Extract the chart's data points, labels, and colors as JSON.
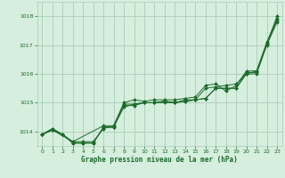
{
  "background_color": "#d6eedd",
  "grid_color": "#aaccbb",
  "line_color": "#1a6b2a",
  "text_color": "#1a6b2a",
  "xlabel": "Graphe pression niveau de la mer (hPa)",
  "xlim": [
    -0.5,
    23.5
  ],
  "ylim": [
    1013.5,
    1018.5
  ],
  "yticks": [
    1014,
    1015,
    1016,
    1017,
    1018
  ],
  "xticks": [
    0,
    1,
    2,
    3,
    4,
    5,
    6,
    7,
    8,
    9,
    10,
    11,
    12,
    13,
    14,
    15,
    16,
    17,
    18,
    19,
    20,
    21,
    22,
    23
  ],
  "series": [
    {
      "x": [
        0,
        1,
        2,
        3,
        4,
        5,
        6,
        7,
        8,
        9,
        10,
        11,
        12,
        13,
        14,
        15,
        16,
        17,
        18,
        19,
        20,
        21,
        22,
        23
      ],
      "y": [
        1013.9,
        1014.1,
        1013.9,
        1013.65,
        1013.65,
        1013.65,
        1014.1,
        1014.2,
        1014.9,
        1014.9,
        1015.0,
        1015.0,
        1015.0,
        1015.0,
        1015.05,
        1015.1,
        1015.15,
        1015.5,
        1015.5,
        1015.5,
        1016.0,
        1016.0,
        1017.0,
        1017.8
      ]
    },
    {
      "x": [
        0,
        1,
        2,
        3,
        4,
        5,
        6,
        7,
        8,
        9,
        10,
        11,
        12,
        13,
        14,
        15,
        16,
        17,
        18,
        19,
        20,
        21,
        22,
        23
      ],
      "y": [
        1013.9,
        1014.1,
        1013.9,
        1013.6,
        1013.6,
        1013.6,
        1014.15,
        1014.15,
        1014.85,
        1014.95,
        1015.0,
        1015.0,
        1015.05,
        1015.0,
        1015.1,
        1015.1,
        1015.5,
        1015.55,
        1015.6,
        1015.65,
        1016.0,
        1016.1,
        1017.05,
        1018.0
      ]
    },
    {
      "x": [
        0,
        1,
        3,
        6,
        7,
        8,
        9,
        10,
        11,
        12,
        13,
        14,
        15,
        16,
        17,
        18,
        19,
        20,
        21,
        22,
        23
      ],
      "y": [
        1013.9,
        1014.05,
        1013.65,
        1014.2,
        1014.2,
        1015.0,
        1015.1,
        1015.05,
        1015.1,
        1015.1,
        1015.1,
        1015.15,
        1015.2,
        1015.6,
        1015.65,
        1015.4,
        1015.6,
        1016.1,
        1016.1,
        1017.1,
        1017.9
      ]
    },
    {
      "x": [
        0,
        1,
        2,
        3,
        4,
        5,
        6,
        7,
        8,
        9,
        10,
        11,
        12,
        13,
        14,
        15,
        16,
        17,
        18,
        19,
        20,
        21,
        22,
        23
      ],
      "y": [
        1013.9,
        1014.05,
        1013.9,
        1013.6,
        1013.6,
        1013.6,
        1014.15,
        1014.15,
        1014.95,
        1014.95,
        1015.0,
        1015.0,
        1015.05,
        1015.0,
        1015.05,
        1015.1,
        1015.15,
        1015.5,
        1015.5,
        1015.5,
        1016.05,
        1016.05,
        1017.05,
        1017.85
      ]
    }
  ]
}
